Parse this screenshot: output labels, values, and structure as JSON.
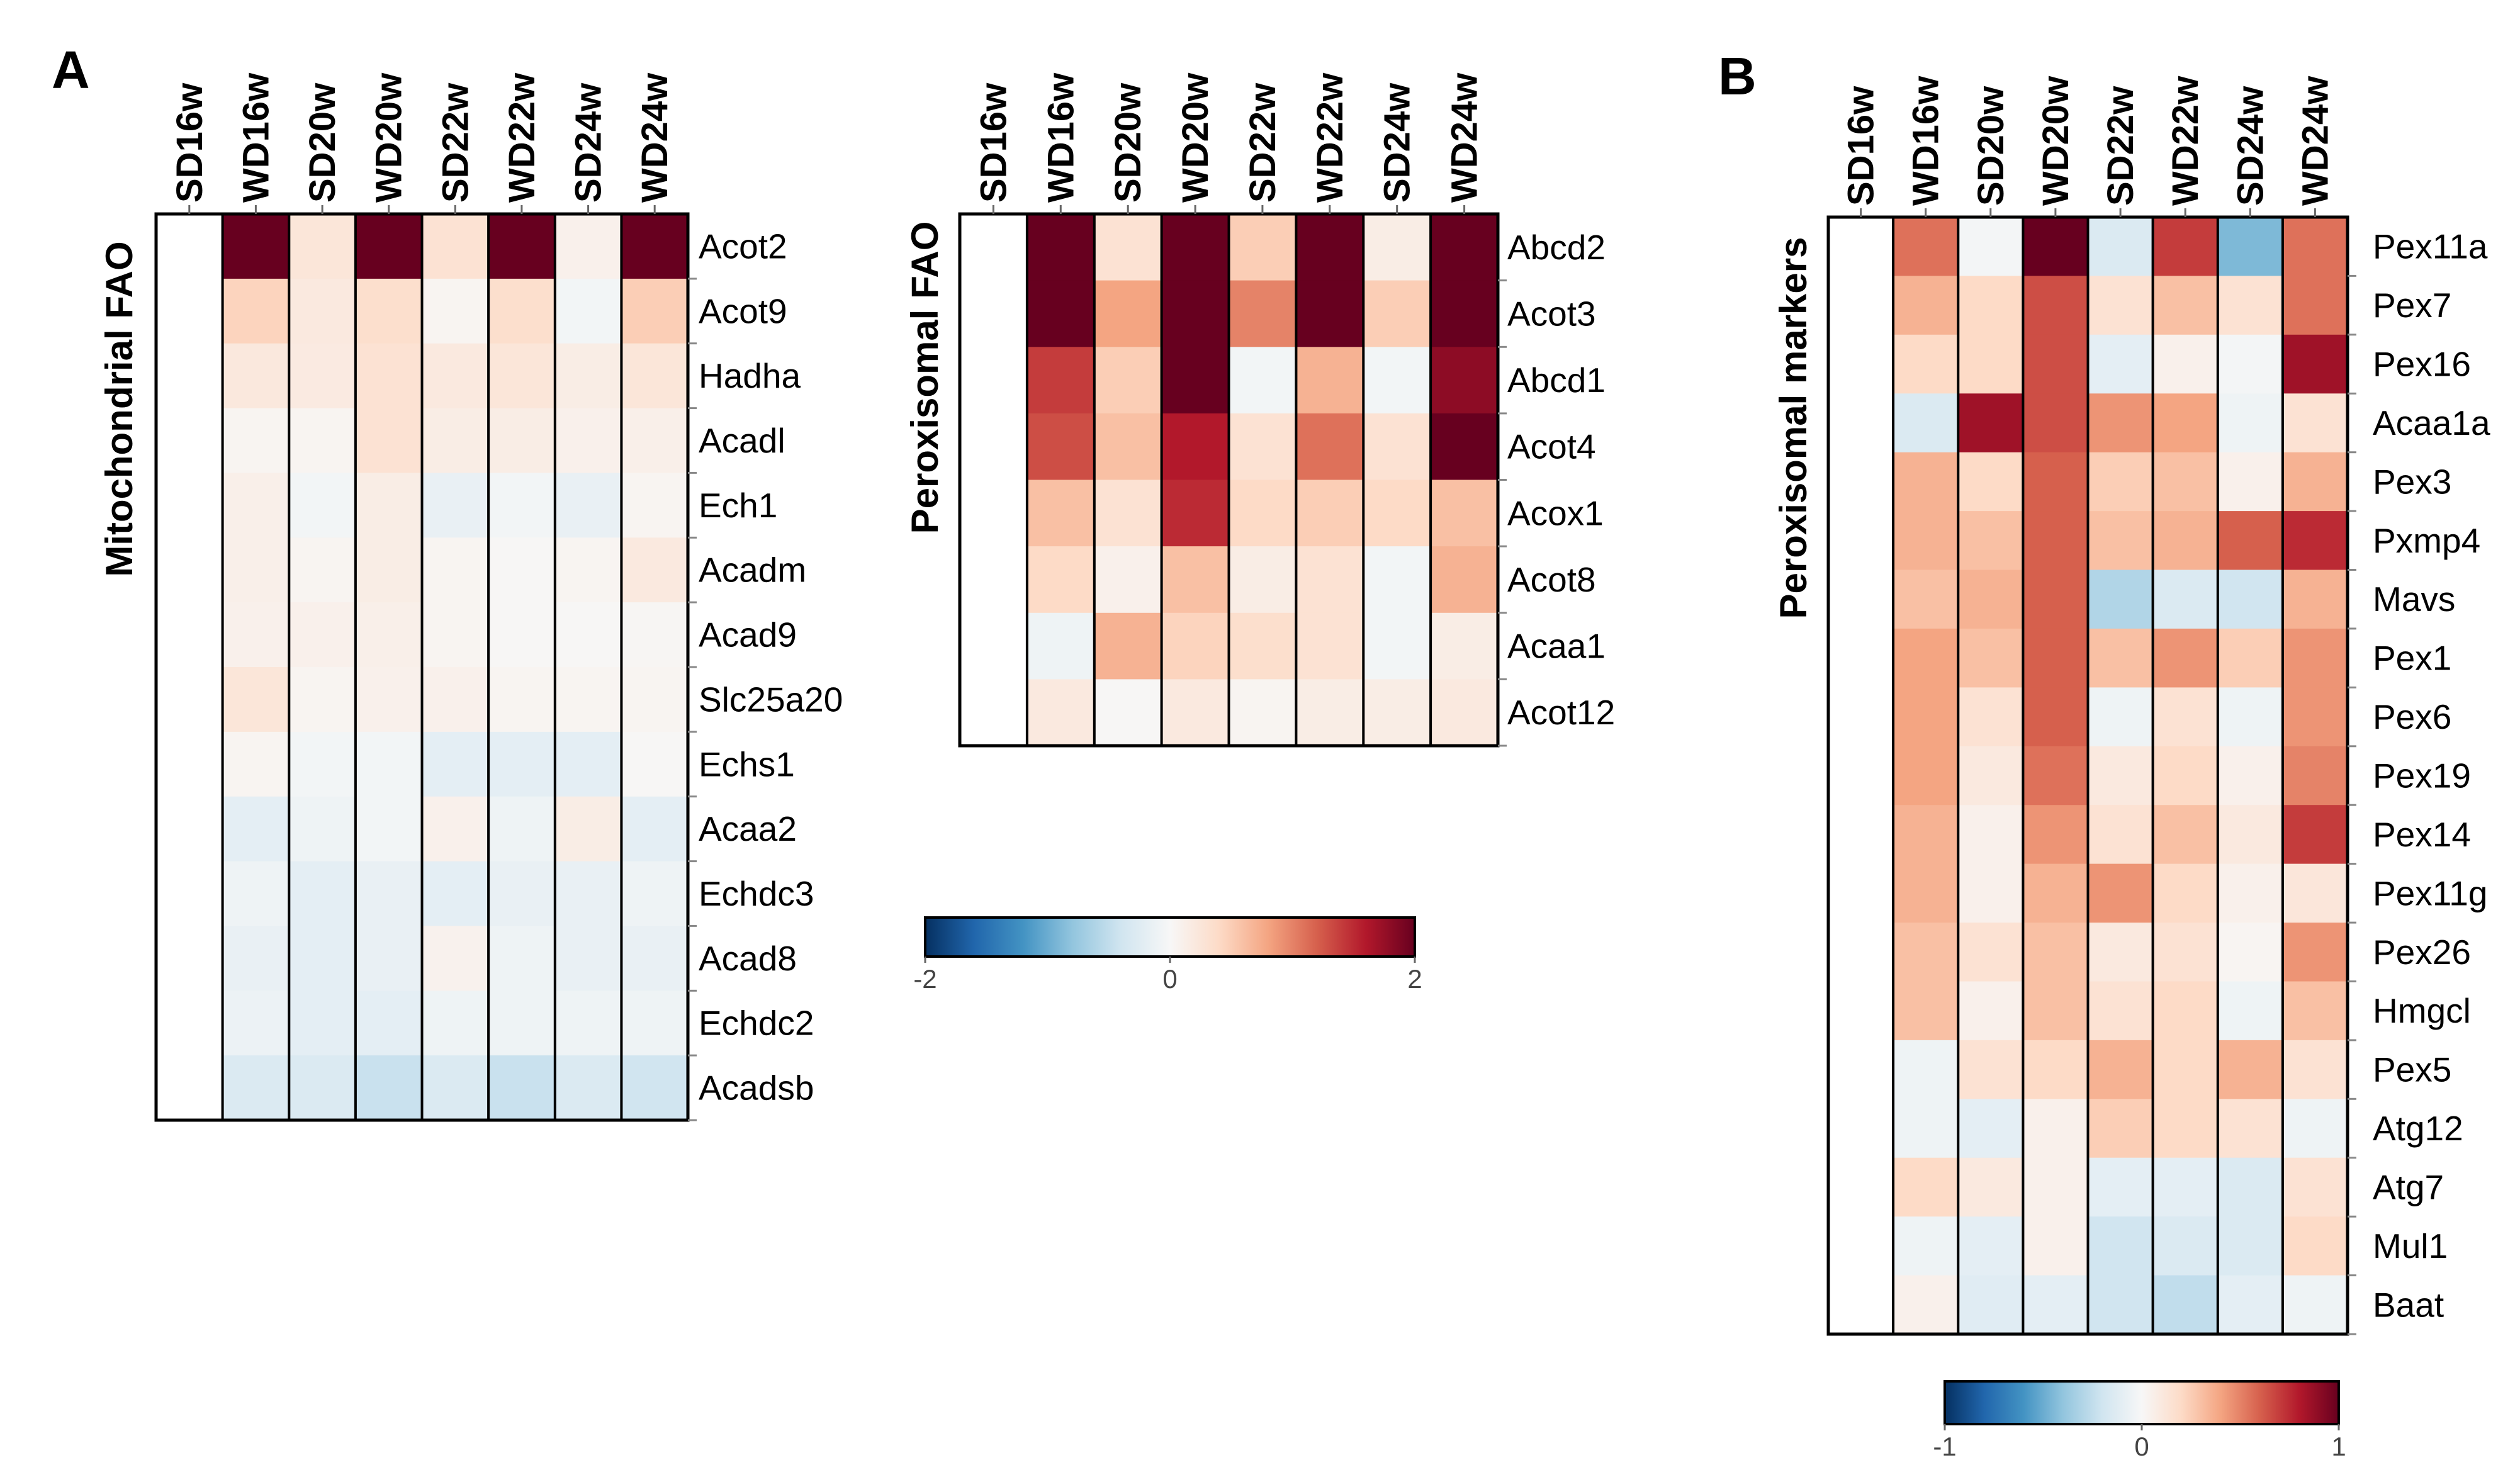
{
  "panel_labels": [
    "A",
    "B"
  ],
  "chart_data": [
    {
      "type": "heatmap",
      "title": "Mitochondrial FAO",
      "panel": "A",
      "columns": [
        "SD16w",
        "WD16w",
        "SD20w",
        "WD20w",
        "SD22w",
        "WD22w",
        "SD24w",
        "WD24w"
      ],
      "rows": [
        "Acot2",
        "Acot9",
        "Hadha",
        "Acadl",
        "Ech1",
        "Acadm",
        "Acad9",
        "Slc25a20",
        "Echs1",
        "Acaa2",
        "Echdc3",
        "Acad8",
        "Echdc2",
        "Acadsb"
      ],
      "values": [
        [
          0,
          2.0,
          0.25,
          2.0,
          0.3,
          2.0,
          0.1,
          2.0
        ],
        [
          0,
          0.45,
          0.2,
          0.35,
          0.05,
          0.35,
          -0.05,
          0.5
        ],
        [
          0,
          0.22,
          0.18,
          0.3,
          0.2,
          0.25,
          0.15,
          0.25
        ],
        [
          0,
          0.05,
          0.05,
          0.3,
          0.15,
          0.15,
          0.1,
          0.12
        ],
        [
          0,
          0.12,
          -0.05,
          0.15,
          -0.15,
          -0.05,
          -0.15,
          0.05
        ],
        [
          0,
          0.12,
          0.05,
          0.15,
          0.05,
          0.02,
          0.05,
          0.2
        ],
        [
          0,
          0.1,
          0.1,
          0.12,
          0.05,
          0.02,
          0.02,
          0.03
        ],
        [
          0,
          0.25,
          0.05,
          0.1,
          0.1,
          0.05,
          0.05,
          0.05
        ],
        [
          0,
          0.05,
          -0.05,
          -0.05,
          -0.2,
          -0.2,
          -0.2,
          0.02
        ],
        [
          0,
          -0.2,
          -0.1,
          -0.05,
          0.1,
          -0.1,
          0.15,
          -0.2
        ],
        [
          0,
          -0.1,
          -0.2,
          -0.15,
          -0.2,
          -0.15,
          -0.15,
          -0.1
        ],
        [
          0,
          -0.15,
          -0.2,
          -0.15,
          0.08,
          -0.1,
          -0.15,
          -0.15
        ],
        [
          0,
          -0.12,
          -0.2,
          -0.2,
          -0.1,
          -0.1,
          -0.1,
          -0.1
        ],
        [
          0,
          -0.3,
          -0.3,
          -0.45,
          -0.3,
          -0.45,
          -0.3,
          -0.4
        ]
      ],
      "colorbar": {
        "min": -2,
        "max": 2,
        "ticks": [
          "-2",
          "0",
          "2"
        ]
      }
    },
    {
      "type": "heatmap",
      "title": "Peroxisomal FAO",
      "panel": "A",
      "columns": [
        "SD16w",
        "WD16w",
        "SD20w",
        "WD20w",
        "SD22w",
        "WD22w",
        "SD24w",
        "WD24w"
      ],
      "rows": [
        "Abcd2",
        "Acot3",
        "Abcd1",
        "Acot4",
        "Acox1",
        "Acot8",
        "Acaa1",
        "Acot12"
      ],
      "values": [
        [
          0,
          2.0,
          0.3,
          2.0,
          0.5,
          2.0,
          0.15,
          2.0
        ],
        [
          0,
          2.0,
          0.8,
          2.0,
          1.0,
          2.0,
          0.5,
          2.0
        ],
        [
          0,
          1.4,
          0.5,
          2.0,
          -0.05,
          0.7,
          -0.05,
          1.8
        ],
        [
          0,
          1.3,
          0.6,
          1.6,
          0.3,
          1.1,
          0.3,
          2.0
        ],
        [
          0,
          0.6,
          0.3,
          1.5,
          0.4,
          0.5,
          0.4,
          0.6
        ],
        [
          0,
          0.4,
          0.1,
          0.6,
          0.15,
          0.3,
          -0.05,
          0.7
        ],
        [
          0,
          -0.1,
          0.7,
          0.45,
          0.35,
          0.3,
          -0.05,
          0.15
        ],
        [
          0,
          0.2,
          0.02,
          0.2,
          0.05,
          0.15,
          0.15,
          0.2
        ]
      ],
      "colorbar": {
        "min": -2,
        "max": 2,
        "ticks": [
          "-2",
          "0",
          "2"
        ]
      }
    },
    {
      "type": "heatmap",
      "title": "Peroxisomal markers",
      "panel": "B",
      "columns": [
        "SD16w",
        "WD16w",
        "SD20w",
        "WD20w",
        "SD22w",
        "WD22w",
        "SD24w",
        "WD24w"
      ],
      "rows": [
        "Pex11a",
        "Pex7",
        "Pex16",
        "Acaa1a",
        "Pex3",
        "Pxmp4",
        "Mavs",
        "Pex1",
        "Pex6",
        "Pex19",
        "Pex14",
        "Pex11g",
        "Pex26",
        "Hmgcl",
        "Pex5",
        "Atg12",
        "Atg7",
        "Mul1",
        "Baat"
      ],
      "values": [
        [
          0,
          0.55,
          -0.02,
          1.0,
          -0.15,
          0.7,
          -0.45,
          0.55
        ],
        [
          0,
          0.35,
          0.2,
          0.65,
          0.15,
          0.3,
          0.15,
          0.55
        ],
        [
          0,
          0.2,
          0.2,
          0.65,
          -0.1,
          0.05,
          -0.02,
          0.85
        ],
        [
          0,
          -0.15,
          0.85,
          0.65,
          0.45,
          0.4,
          -0.05,
          0.15
        ],
        [
          0,
          0.35,
          0.2,
          0.6,
          0.25,
          0.3,
          0.05,
          0.35
        ],
        [
          0,
          0.35,
          0.3,
          0.6,
          0.3,
          0.35,
          0.6,
          0.75
        ],
        [
          0,
          0.3,
          0.35,
          0.6,
          -0.3,
          -0.15,
          -0.2,
          0.35
        ],
        [
          0,
          0.4,
          0.3,
          0.6,
          0.3,
          0.45,
          0.25,
          0.45
        ],
        [
          0,
          0.4,
          0.15,
          0.6,
          -0.05,
          0.15,
          -0.05,
          0.45
        ],
        [
          0,
          0.4,
          0.1,
          0.55,
          0.1,
          0.2,
          0.05,
          0.5
        ],
        [
          0,
          0.35,
          0.05,
          0.45,
          0.15,
          0.3,
          0.1,
          0.7
        ],
        [
          0,
          0.35,
          0.05,
          0.35,
          0.45,
          0.2,
          0.05,
          0.12
        ],
        [
          0,
          0.3,
          0.15,
          0.3,
          0.1,
          0.15,
          0.02,
          0.45
        ],
        [
          0,
          0.3,
          0.05,
          0.3,
          0.15,
          0.2,
          -0.05,
          0.3
        ],
        [
          0,
          -0.05,
          0.15,
          0.2,
          0.35,
          0.2,
          0.35,
          0.15
        ],
        [
          0,
          -0.05,
          -0.1,
          0.05,
          0.25,
          0.2,
          0.15,
          -0.05
        ],
        [
          0,
          0.2,
          0.1,
          0.05,
          -0.1,
          -0.1,
          -0.15,
          0.15
        ],
        [
          0,
          -0.05,
          -0.1,
          0.05,
          -0.2,
          -0.15,
          -0.15,
          0.2
        ],
        [
          0,
          0.05,
          -0.12,
          -0.1,
          -0.2,
          -0.25,
          -0.1,
          -0.05
        ]
      ],
      "colorbar": {
        "min": -1,
        "max": 1,
        "ticks": [
          "-1",
          "0",
          "1"
        ]
      }
    }
  ]
}
